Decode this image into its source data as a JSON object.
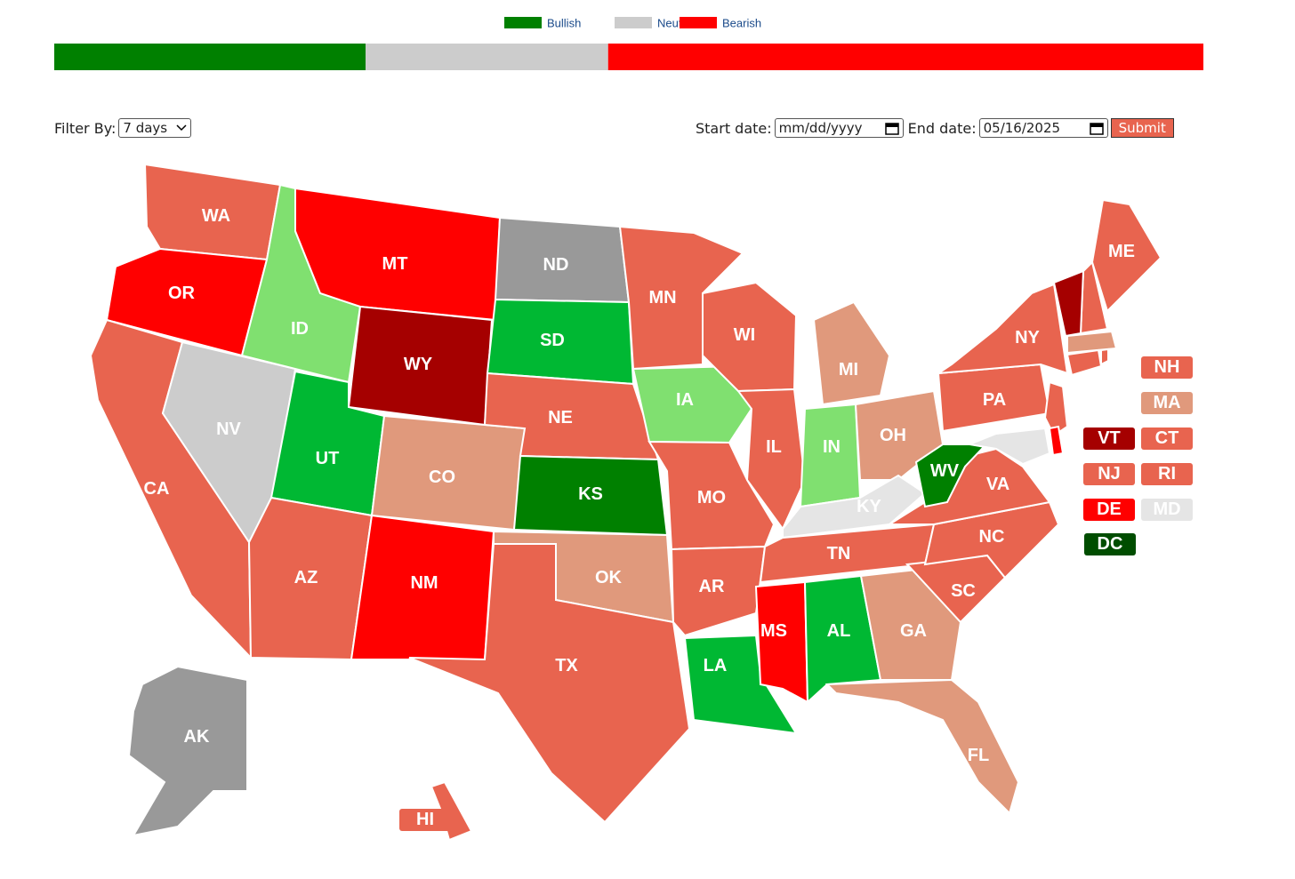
{
  "legend": [
    {
      "name": "Bullish",
      "color": "#008000"
    },
    {
      "name": "Neutral",
      "color": "#cccccc"
    },
    {
      "name": "Bearish",
      "color": "#ff0000"
    }
  ],
  "sentiment_bar": [
    27.1,
    21.1,
    51.8
  ],
  "filter": {
    "label": "Filter By:",
    "selected": "7 days"
  },
  "dates": {
    "start_label": "Start date:",
    "start_value": "mm/dd/yyyy",
    "end_label": "End date:",
    "end_value": "05/16/2025",
    "submit": "Submit"
  },
  "states": [
    {
      "label": "WA",
      "color": "#e8644f"
    },
    {
      "label": "OR",
      "color": "#ff0000"
    },
    {
      "label": "CA",
      "color": "#e8644f"
    },
    {
      "label": "NV",
      "color": "#cccccc"
    },
    {
      "label": "ID",
      "color": "#80e070"
    },
    {
      "label": "MT",
      "color": "#ff0000"
    },
    {
      "label": "WY",
      "color": "#a50000"
    },
    {
      "label": "UT",
      "color": "#00b833"
    },
    {
      "label": "AZ",
      "color": "#e8644f"
    },
    {
      "label": "CO",
      "color": "#e0997c"
    },
    {
      "label": "NM",
      "color": "#ff0000"
    },
    {
      "label": "ND",
      "color": "#999999"
    },
    {
      "label": "SD",
      "color": "#00b833"
    },
    {
      "label": "NE",
      "color": "#e8644f"
    },
    {
      "label": "KS",
      "color": "#008000"
    },
    {
      "label": "OK",
      "color": "#e0997c"
    },
    {
      "label": "TX",
      "color": "#e8644f"
    },
    {
      "label": "MN",
      "color": "#e8644f"
    },
    {
      "label": "IA",
      "color": "#80e070"
    },
    {
      "label": "MO",
      "color": "#e8644f"
    },
    {
      "label": "AR",
      "color": "#e8644f"
    },
    {
      "label": "LA",
      "color": "#00b833"
    },
    {
      "label": "WI",
      "color": "#e8644f"
    },
    {
      "label": "IL",
      "color": "#e8644f"
    },
    {
      "label": "MI",
      "color": "#e0997c"
    },
    {
      "label": "IN",
      "color": "#80e070"
    },
    {
      "label": "OH",
      "color": "#e0997c"
    },
    {
      "label": "KY",
      "color": "#e5e5e5"
    },
    {
      "label": "TN",
      "color": "#e8644f"
    },
    {
      "label": "MS",
      "color": "#ff0000"
    },
    {
      "label": "AL",
      "color": "#00b833"
    },
    {
      "label": "GA",
      "color": "#e0997c"
    },
    {
      "label": "FL",
      "color": "#e0997c"
    },
    {
      "label": "SC",
      "color": "#e8644f"
    },
    {
      "label": "NC",
      "color": "#e8644f"
    },
    {
      "label": "VA",
      "color": "#e8644f"
    },
    {
      "label": "WV",
      "color": "#008000"
    },
    {
      "label": "PA",
      "color": "#e8644f"
    },
    {
      "label": "NY",
      "color": "#e8644f"
    },
    {
      "label": "ME",
      "color": "#e8644f"
    },
    {
      "label": "AK",
      "color": "#999999"
    },
    {
      "label": "HI",
      "color": "#e8644f"
    },
    {
      "label": "NH",
      "color": "#e8644f"
    },
    {
      "label": "MA",
      "color": "#e0997c"
    },
    {
      "label": "VT",
      "color": "#a50000"
    },
    {
      "label": "CT",
      "color": "#e8644f"
    },
    {
      "label": "NJ",
      "color": "#e8644f"
    },
    {
      "label": "RI",
      "color": "#e8644f"
    },
    {
      "label": "DE",
      "color": "#ff0000"
    },
    {
      "label": "MD",
      "color": "#e5e5e5"
    },
    {
      "label": "DC",
      "color": "#004d00"
    }
  ]
}
